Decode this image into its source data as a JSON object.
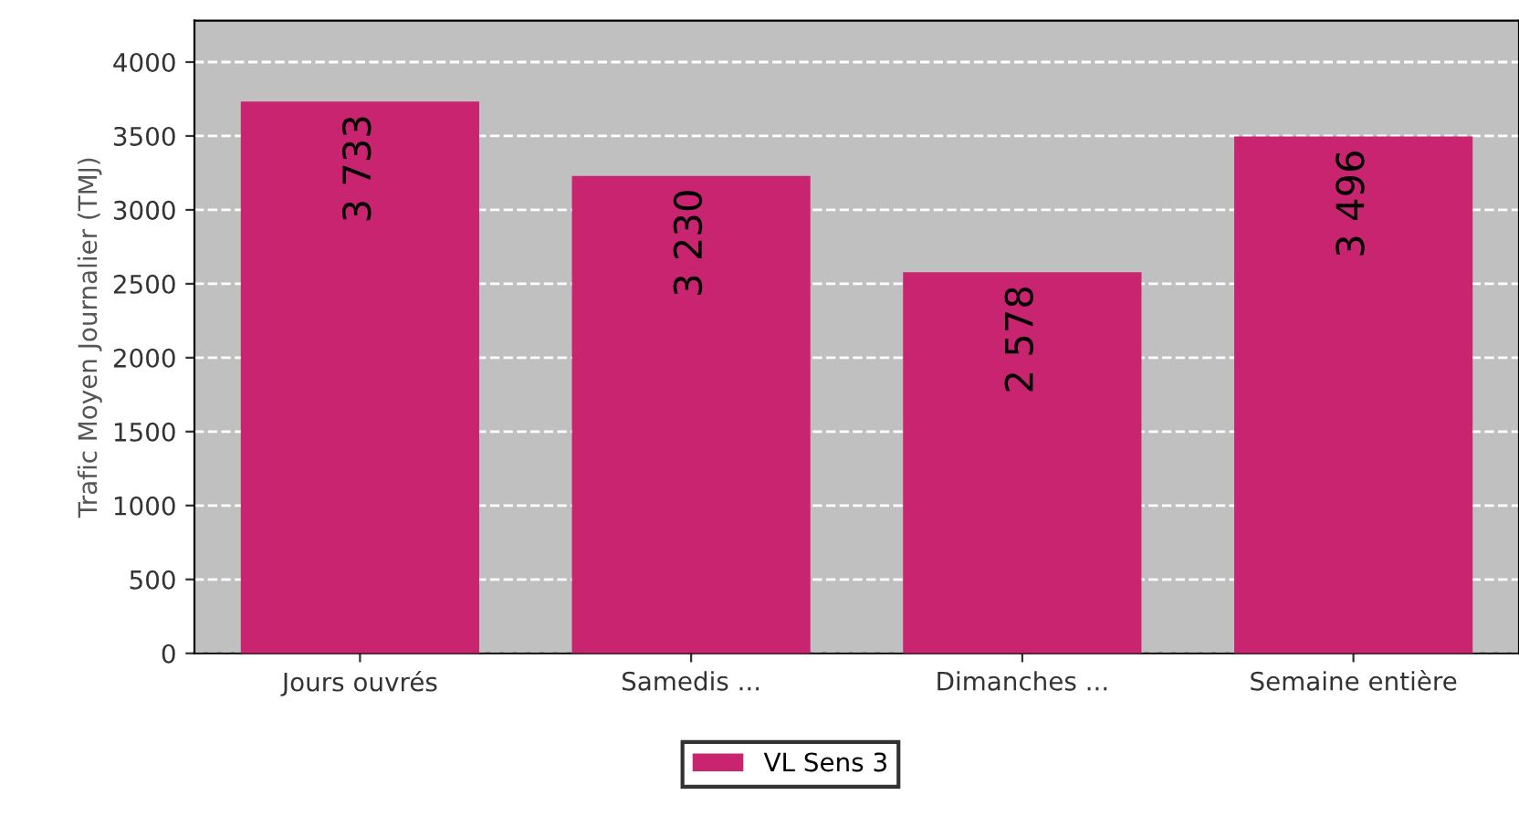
{
  "chart_data": {
    "type": "bar",
    "ylabel": "Trafic Moyen Journalier (TMJ)",
    "categories": [
      "Jours ouvrés",
      "Samedis ...",
      "Dimanches ...",
      "Semaine entière"
    ],
    "series": [
      {
        "name": "VL Sens 3",
        "color": "#c8246f",
        "values": [
          3733,
          3230,
          2578,
          3496
        ],
        "value_labels": [
          "3 733",
          "3 230",
          "2 578",
          "3 496"
        ]
      }
    ],
    "ylim": [
      0,
      4280
    ],
    "yticks": [
      0,
      500,
      1000,
      1500,
      2000,
      2500,
      3000,
      3500,
      4000
    ],
    "grid": "y",
    "legend": "bottom"
  }
}
